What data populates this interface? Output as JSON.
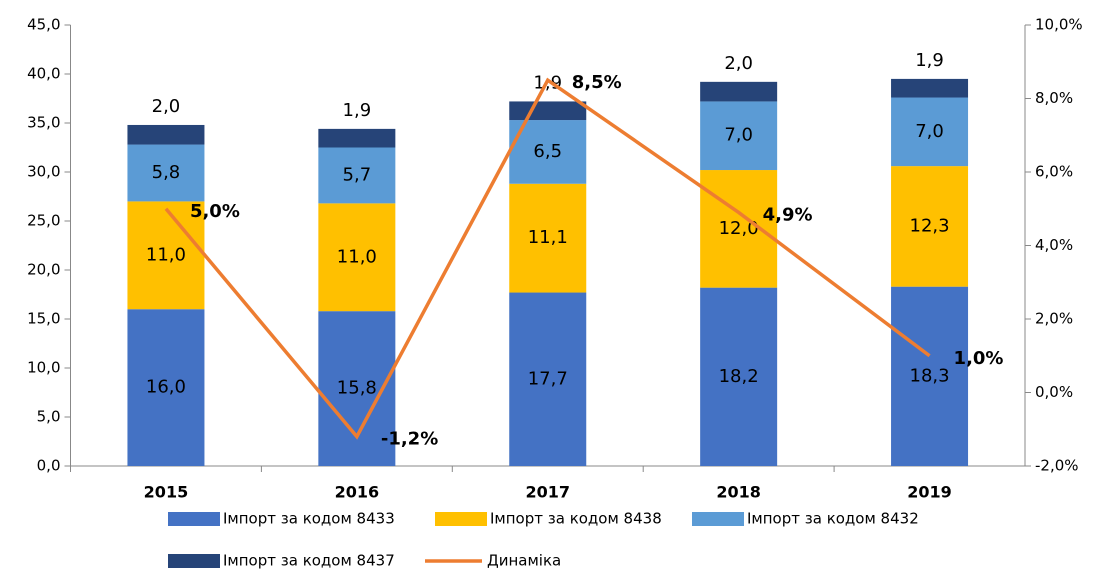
{
  "chart_data": {
    "type": "bar",
    "stacked": true,
    "categories": [
      "2015",
      "2016",
      "2017",
      "2018",
      "2019"
    ],
    "series": [
      {
        "name": "Імпорт за кодом 8433",
        "color": "#4472c4",
        "values": [
          16.0,
          15.8,
          17.7,
          18.2,
          18.3
        ],
        "value_labels": [
          "16,0",
          "15,8",
          "17,7",
          "18,2",
          "18,3"
        ]
      },
      {
        "name": "Імпорт за кодом 8438",
        "color": "#ffc000",
        "values": [
          11.0,
          11.0,
          11.1,
          12.0,
          12.3
        ],
        "value_labels": [
          "11,0",
          "11,0",
          "11,1",
          "12,0",
          "12,3"
        ]
      },
      {
        "name": "Імпорт за кодом 8432",
        "color": "#5b9bd5",
        "values": [
          5.8,
          5.7,
          6.5,
          7.0,
          7.0
        ],
        "value_labels": [
          "5,8",
          "5,7",
          "6,5",
          "7,0",
          "7,0"
        ]
      },
      {
        "name": "Імпорт за кодом 8437",
        "color": "#264478",
        "values": [
          2.0,
          1.9,
          1.9,
          2.0,
          1.9
        ],
        "value_labels": [
          "2,0",
          "1,9",
          "1,9",
          "2,0",
          "1,9"
        ]
      },
      {
        "name": "Динаміка",
        "type": "line",
        "axis": "y2",
        "color": "#ed7d31",
        "values": [
          5.0,
          -1.2,
          8.5,
          4.9,
          1.0
        ],
        "value_labels": [
          "5,0%",
          "-1,2%",
          "8,5%",
          "4,9%",
          "1,0%"
        ]
      }
    ],
    "ylim": [
      0,
      45
    ],
    "yticks": [
      {
        "value": 0,
        "label": "0,0"
      },
      {
        "value": 5,
        "label": "5,0"
      },
      {
        "value": 10,
        "label": "10,0"
      },
      {
        "value": 15,
        "label": "15,0"
      },
      {
        "value": 20,
        "label": "20,0"
      },
      {
        "value": 25,
        "label": "25,0"
      },
      {
        "value": 30,
        "label": "30,0"
      },
      {
        "value": 35,
        "label": "35,0"
      },
      {
        "value": 40,
        "label": "40,0"
      },
      {
        "value": 45,
        "label": "45,0"
      }
    ],
    "y2lim": [
      -2,
      10
    ],
    "y2ticks": [
      {
        "value": -2,
        "label": "-2,0%"
      },
      {
        "value": 0,
        "label": "0,0%"
      },
      {
        "value": 2,
        "label": "2,0%"
      },
      {
        "value": 4,
        "label": "4,0%"
      },
      {
        "value": 6,
        "label": "6,0%"
      },
      {
        "value": 8,
        "label": "8,0%"
      },
      {
        "value": 10,
        "label": "10,0%"
      }
    ],
    "legend": "bottom"
  }
}
